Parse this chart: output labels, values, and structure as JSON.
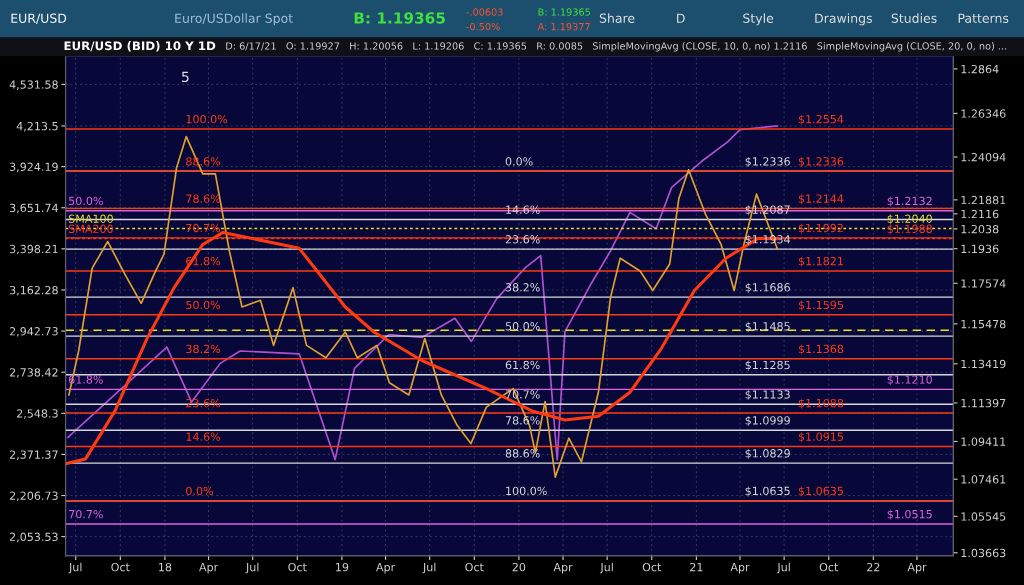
{
  "chart_data": {
    "type": "line",
    "title": "EUR/USD (BID) 10 Y 1D",
    "subtitle": "D: 6/17/21   O: 1.19927   H: 1.20056   L: 1.19206   C: 1.19365   R: 0.0085   SimpleMovingAvg (CLOSE, 10, 0, no) 1.2116   SimpleMovingAvg (CLOSE, 20, 0, no) ...",
    "annotations": [
      "EUR/USD",
      "Euro/USDollar Spot",
      "B: 1.19365",
      "-.00603",
      "-0.50%",
      "B: 1.19365",
      "A: 1.19377",
      "Share",
      "D",
      "Style",
      "Drawings",
      "Studies",
      "Patterns",
      "5",
      "0.0%",
      "14.6%",
      "23.6%",
      "38.2%",
      "50.0%",
      "61.8%",
      "70.7%",
      "78.6%",
      "88.6%",
      "100.0%",
      "100.0%",
      "88.6%",
      "78.6%",
      "70.7%",
      "61.8%",
      "50.0%",
      "38.2%",
      "23.6%",
      "14.6%",
      "0.0%",
      "50.0%",
      "61.8%",
      "70.7%",
      "SMA100",
      "SMA200"
    ],
    "xlim": [
      "2017-06-10",
      "2022-06-15"
    ],
    "xticks": [
      {
        "value": "2017-07-01",
        "label": "Jul"
      },
      {
        "value": "2017-10-01",
        "label": "Oct"
      },
      {
        "value": "2018-01-01",
        "label": "18"
      },
      {
        "value": "2018-04-01",
        "label": "Apr"
      },
      {
        "value": "2018-07-01",
        "label": "Jul"
      },
      {
        "value": "2018-10-01",
        "label": "Oct"
      },
      {
        "value": "2019-01-01",
        "label": "19"
      },
      {
        "value": "2019-04-01",
        "label": "Apr"
      },
      {
        "value": "2019-07-01",
        "label": "Jul"
      },
      {
        "value": "2019-10-01",
        "label": "Oct"
      },
      {
        "value": "2020-01-01",
        "label": "20"
      },
      {
        "value": "2020-04-01",
        "label": "Apr"
      },
      {
        "value": "2020-07-01",
        "label": "Jul"
      },
      {
        "value": "2020-10-01",
        "label": "Oct"
      },
      {
        "value": "2021-01-01",
        "label": "21"
      },
      {
        "value": "2021-04-01",
        "label": "Apr"
      },
      {
        "value": "2021-07-01",
        "label": "Jul"
      },
      {
        "value": "2021-10-01",
        "label": "Oct"
      },
      {
        "value": "2022-01-01",
        "label": "22"
      },
      {
        "value": "2022-04-01",
        "label": "Apr"
      }
    ],
    "ylim": [
      1986,
      4766
    ],
    "yticks": [
      {
        "value": 2053.53,
        "label": "2,053.53"
      },
      {
        "value": 2206.73,
        "label": "2,206.73"
      },
      {
        "value": 2371.37,
        "label": "2,371.37"
      },
      {
        "value": 2548.3,
        "label": "2,548.3"
      },
      {
        "value": 2738.42,
        "label": "2,738.42"
      },
      {
        "value": 2942.73,
        "label": "2,942.73"
      },
      {
        "value": 3162.28,
        "label": "3,162.28"
      },
      {
        "value": 3398.21,
        "label": "3,398.21"
      },
      {
        "value": 3651.74,
        "label": "3,651.74"
      },
      {
        "value": 3924.19,
        "label": "3,924.19"
      },
      {
        "value": 4213.5,
        "label": "4,213.5"
      },
      {
        "value": 4531.58,
        "label": "4,531.58"
      }
    ],
    "y2lim": [
      1.0351,
      1.2933
    ],
    "y2ticks": [
      1.03663,
      1.05545,
      1.07461,
      1.09411,
      1.11397,
      1.13419,
      1.15478,
      1.17574,
      1.1936,
      1.2038,
      1.2116,
      1.21881,
      1.24094,
      1.26346,
      1.2864
    ],
    "log": true,
    "grid": true,
    "series": [
      {
        "color": "#e0a030",
        "axis": "y2",
        "x": [
          "2017-06-17",
          "2017-07-07",
          "2017-08-04",
          "2017-09-05",
          "2017-10-10",
          "2017-11-13",
          "2017-12-10",
          "2017-12-30",
          "2018-01-25",
          "2018-02-14",
          "2018-03-20",
          "2018-04-15",
          "2018-05-14",
          "2018-06-09",
          "2018-07-17",
          "2018-08-13",
          "2018-09-22",
          "2018-10-20",
          "2018-11-29",
          "2019-01-08",
          "2019-02-02",
          "2019-03-14",
          "2019-04-09",
          "2019-05-19",
          "2019-06-21",
          "2019-07-25",
          "2019-08-27",
          "2019-09-24",
          "2019-10-26",
          "2019-12-20",
          "2020-01-23",
          "2020-02-04",
          "2020-02-24",
          "2020-03-16",
          "2020-04-13",
          "2020-05-09",
          "2020-06-13",
          "2020-07-08",
          "2020-07-28",
          "2020-09-07",
          "2020-10-03",
          "2020-11-07",
          "2020-11-26",
          "2020-12-16",
          "2021-01-20",
          "2021-02-21",
          "2021-03-20",
          "2021-04-09",
          "2021-05-05",
          "2021-06-17"
        ],
        "values": [
          1.1181,
          1.1408,
          1.1836,
          1.1973,
          1.1806,
          1.1654,
          1.1806,
          1.1908,
          1.2354,
          1.2515,
          1.2322,
          1.2322,
          1.1923,
          1.1635,
          1.167,
          1.1437,
          1.1735,
          1.1437,
          1.1373,
          1.1506,
          1.1373,
          1.1437,
          1.1244,
          1.1181,
          1.1472,
          1.1181,
          1.1023,
          1.093,
          1.1118,
          1.1214,
          1.1023,
          1.0883,
          1.1147,
          1.0757,
          1.0958,
          1.0836,
          1.1195,
          1.1685,
          1.1887,
          1.1821,
          1.172,
          1.1857,
          1.2197,
          1.2344,
          1.2113,
          1.1958,
          1.172,
          1.1958,
          1.2218,
          1.1936
        ]
      },
      {
        "color": "#b050d0",
        "x": [
          "2017-06-15",
          "2018-01-05",
          "2018-02-25",
          "2018-04-25",
          "2018-06-05",
          "2018-10-05",
          "2018-12-18",
          "2019-01-27",
          "2019-04-08",
          "2019-06-15",
          "2019-08-22",
          "2019-09-25",
          "2019-11-16",
          "2020-01-15",
          "2020-02-15",
          "2020-03-20",
          "2020-04-05",
          "2020-05-29",
          "2020-07-08",
          "2020-08-17",
          "2020-10-10",
          "2020-11-11",
          "2021-01-12",
          "2021-03-06",
          "2021-04-01",
          "2021-06-17"
        ],
        "values": [
          2443,
          2861,
          2599,
          2781,
          2842,
          2828,
          2350,
          2757,
          2925,
          2910,
          3010,
          2890,
          3113,
          3290,
          3358,
          2350,
          2940,
          3197,
          3386,
          3622,
          3520,
          3784,
          3961,
          4096,
          4187,
          4214
        ]
      },
      {
        "color": "#ff3a10",
        "axis": "y2",
        "x": [
          "2017-06-10",
          "2017-07-21",
          "2017-09-20",
          "2017-11-25",
          "2018-01-20",
          "2018-03-20",
          "2018-05-01",
          "2018-10-05",
          "2019-01-08",
          "2019-03-08",
          "2019-06-15",
          "2019-10-26",
          "2020-01-28",
          "2020-04-05",
          "2020-06-13",
          "2020-08-17",
          "2020-10-21",
          "2020-12-28",
          "2021-03-03",
          "2021-05-08",
          "2021-06-17"
        ],
        "values": [
          1.0826,
          1.085,
          1.1099,
          1.1472,
          1.1735,
          1.1958,
          1.202,
          1.1938,
          1.1635,
          1.1506,
          1.1359,
          1.1214,
          1.1099,
          1.1052,
          1.1071,
          1.1195,
          1.1422,
          1.172,
          1.1887,
          1.1989,
          1.1988
        ]
      }
    ],
    "ref_lines": [
      {
        "axis": "y2",
        "value": 1.2336,
        "color": "#d8d8d8",
        "label": "$1.2336"
      },
      {
        "axis": "y2",
        "value": 1.2087,
        "color": "#d8d8d8",
        "label": "$1.2087"
      },
      {
        "axis": "y2",
        "value": 1.1934,
        "color": "#d8d8d8",
        "label": "$1.1934"
      },
      {
        "axis": "y2",
        "value": 1.1686,
        "color": "#d8d8d8",
        "label": "$1.1686"
      },
      {
        "axis": "y2",
        "value": 1.1485,
        "color": "#d8d8d8",
        "label": "$1.1485"
      },
      {
        "axis": "y2",
        "value": 1.1285,
        "color": "#d8d8d8",
        "label": "$1.1285"
      },
      {
        "axis": "y2",
        "value": 1.1133,
        "color": "#d8d8d8",
        "label": "$1.1133"
      },
      {
        "axis": "y2",
        "value": 1.0999,
        "color": "#d8d8d8",
        "label": "$1.0999"
      },
      {
        "axis": "y2",
        "value": 1.0829,
        "color": "#d8d8d8",
        "label": "$1.0829"
      },
      {
        "axis": "y2",
        "value": 1.0635,
        "color": "#d8d8d8",
        "label": "$1.0635"
      },
      {
        "axis": "y2",
        "value": 1.2554,
        "color": "#ff3a10",
        "label": "$1.2554"
      },
      {
        "axis": "y2",
        "value": 1.2336,
        "color": "#ff3a10",
        "label": "$1.2336"
      },
      {
        "axis": "y2",
        "value": 1.2144,
        "color": "#ff3a10",
        "label": "$1.2144"
      },
      {
        "axis": "y2",
        "value": 1.1992,
        "color": "#ff3a10",
        "label": "$1.1992"
      },
      {
        "axis": "y2",
        "value": 1.1821,
        "color": "#ff3a10",
        "label": "$1.1821"
      },
      {
        "axis": "y2",
        "value": 1.1595,
        "color": "#ff3a10",
        "label": "$1.1595"
      },
      {
        "axis": "y2",
        "value": 1.1368,
        "color": "#ff3a10",
        "label": "$1.1368"
      },
      {
        "axis": "y2",
        "value": 1.1088,
        "color": "#ff3a10",
        "label": "$1.1088"
      },
      {
        "axis": "y2",
        "value": 1.0915,
        "color": "#ff3a10",
        "label": "$1.0915"
      },
      {
        "axis": "y2",
        "value": 1.0635,
        "color": "#ff3a10",
        "label": "$1.0635"
      },
      {
        "axis": "y2",
        "value": 1.2132,
        "color": "#e060e0",
        "label": "$1.2132"
      },
      {
        "axis": "y2",
        "value": 1.121,
        "color": "#e060e0",
        "label": "$1.1210"
      },
      {
        "axis": "y2",
        "value": 1.0515,
        "color": "#e060e0",
        "label": "$1.0515"
      },
      {
        "axis": "y2",
        "value": 1.204,
        "color": "#e8e020",
        "line_style": "dotted",
        "label": "$1.2040"
      },
      {
        "axis": "y2",
        "value": 1.1988,
        "color": "#ff3a10",
        "line_style": "dotted",
        "label": "$1.1988"
      },
      {
        "axis": "y2",
        "value": 1.1515,
        "color": "#e8e020",
        "line_style": "dashed"
      }
    ]
  }
}
